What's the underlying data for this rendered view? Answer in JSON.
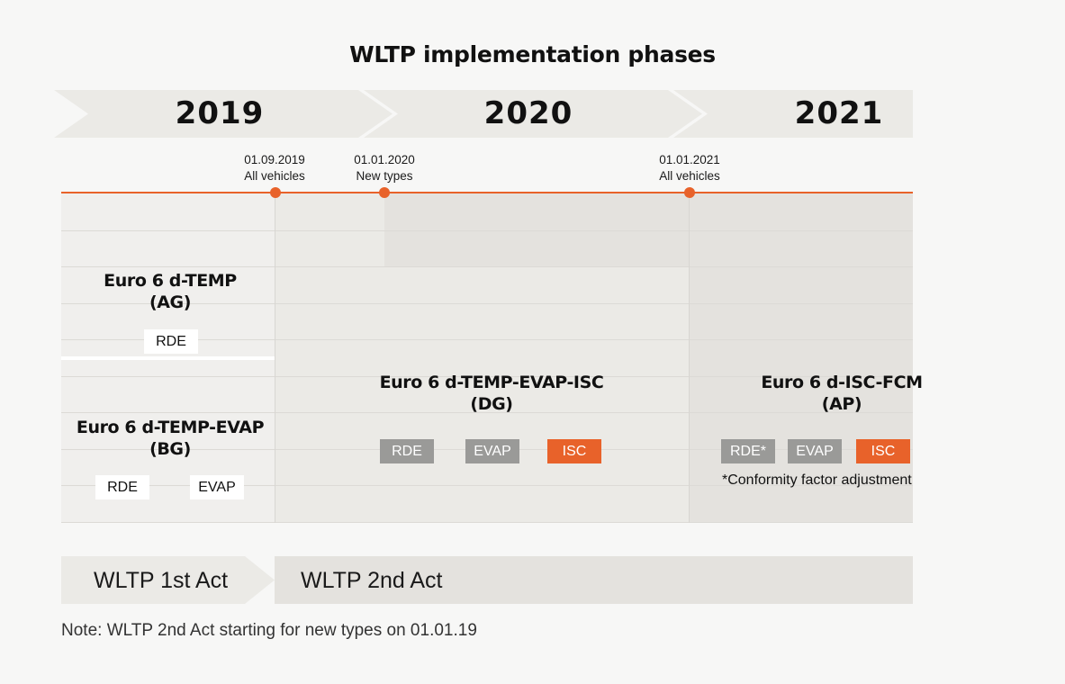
{
  "title": "WLTP implementation phases",
  "years": [
    "2019",
    "2020",
    "2021"
  ],
  "milestones": [
    {
      "date": "01.09.2019",
      "label": "All vehicles"
    },
    {
      "date": "01.01.2020",
      "label": "New types"
    },
    {
      "date": "01.01.2021",
      "label": "All vehicles"
    }
  ],
  "blocks": {
    "ag": {
      "name": "Euro 6 d-TEMP",
      "code": "(AG)",
      "tags": [
        "RDE"
      ]
    },
    "bg": {
      "name": "Euro 6 d-TEMP-EVAP",
      "code": "(BG)",
      "tags": [
        "RDE",
        "EVAP"
      ]
    },
    "dg": {
      "name": "Euro 6 d-TEMP-EVAP-ISC",
      "code": "(DG)",
      "tags": [
        "RDE",
        "EVAP",
        "ISC"
      ]
    },
    "ap": {
      "name": "Euro 6 d-ISC-FCM",
      "code": "(AP)",
      "tags": [
        "RDE*",
        "EVAP",
        "ISC"
      ],
      "footnote": "*Conformity factor adjustment"
    }
  },
  "acts": [
    "WLTP 1st Act",
    "WLTP 2nd Act"
  ],
  "note": "Note: WLTP 2nd Act starting for new types on 01.01.19",
  "colors": {
    "accent": "#e8622a",
    "grey_tag": "#9a9a98",
    "chevron": "#ebeae6"
  }
}
